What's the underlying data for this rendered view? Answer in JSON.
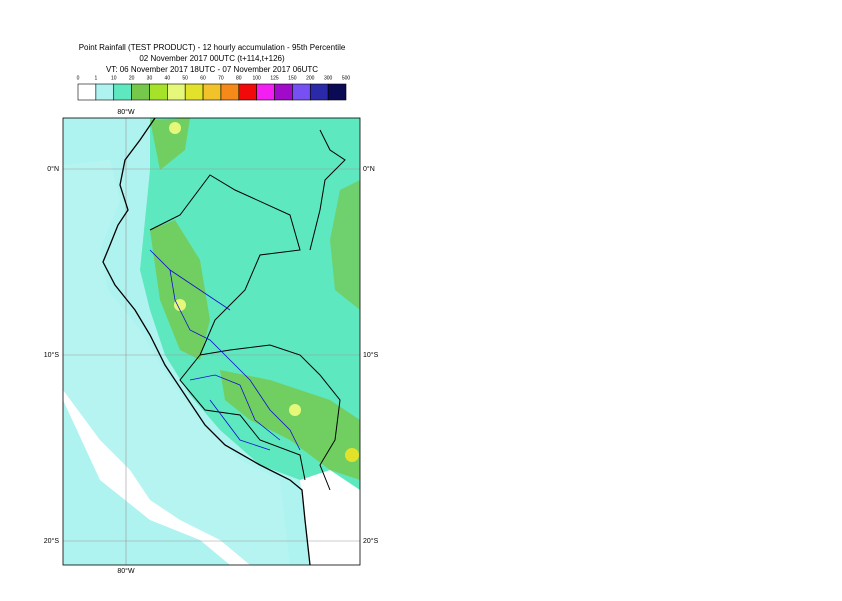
{
  "title_lines": [
    "Point Rainfall (TEST PRODUCT) - 12 hourly accumulation - 95th Percentile",
    "02 November 2017 00UTC (t+114,t+126)",
    "VT: 06 November 2017 18UTC - 07 November 2017 06UTC"
  ],
  "legend": {
    "thresholds": [
      0,
      1,
      10,
      20,
      30,
      40,
      50,
      60,
      70,
      80,
      100,
      125,
      150,
      200,
      300,
      500
    ],
    "colors": [
      "#ffffff",
      "#aef3f0",
      "#5ee8c0",
      "#76c84a",
      "#a6e22a",
      "#e6f87a",
      "#e2e22a",
      "#f2c22a",
      "#f58a1a",
      "#f20a0a",
      "#f21ef2",
      "#a00ac8",
      "#7650f2",
      "#2a2aa8",
      "#0a0a55"
    ]
  },
  "map": {
    "lon_labels": [
      "80°W",
      "80°W"
    ],
    "lat_labels": [
      "0°N",
      "0°N",
      "10°S",
      "10°S",
      "20°S",
      "20°S"
    ]
  }
}
